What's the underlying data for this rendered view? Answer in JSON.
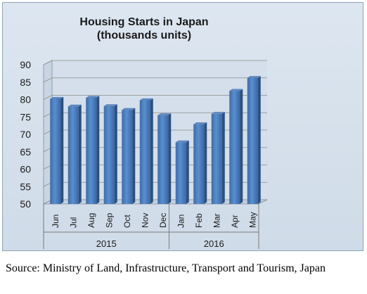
{
  "chart_data": {
    "type": "bar",
    "title": "Housing Starts in Japan",
    "subtitle": "(thousands units)",
    "categories": [
      "Jun",
      "Jul",
      "Aug",
      "Sep",
      "Oct",
      "Nov",
      "Dec",
      "Jan",
      "Feb",
      "Mar",
      "Apr",
      "May"
    ],
    "groups": [
      {
        "label": "2015",
        "count": 7
      },
      {
        "label": "2016",
        "count": 5
      }
    ],
    "values": [
      80.2,
      78.0,
      80.5,
      78.1,
      77.0,
      79.8,
      75.5,
      67.7,
      72.9,
      75.9,
      82.5,
      86.2
    ],
    "ylim": [
      50,
      90
    ],
    "yticks": [
      50,
      55,
      60,
      65,
      70,
      75,
      80,
      85,
      90
    ],
    "grid": true,
    "xlabel": "",
    "ylabel": "",
    "bar_color": "#4f81bd"
  },
  "source_note": "Source: Ministry of Land, Infrastructure, Transport and Tourism, Japan"
}
